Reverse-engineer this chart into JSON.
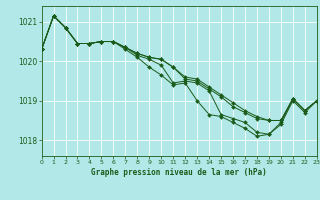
{
  "title": "Graphe pression niveau de la mer (hPa)",
  "background_color": "#b3e8e8",
  "grid_color": "#ffffff",
  "line_color": "#1a5c1a",
  "marker_color": "#1a5c1a",
  "xlim": [
    0,
    23
  ],
  "ylim": [
    1017.6,
    1021.4
  ],
  "yticks": [
    1018,
    1019,
    1020,
    1021
  ],
  "xticks": [
    0,
    1,
    2,
    3,
    4,
    5,
    6,
    7,
    8,
    9,
    10,
    11,
    12,
    13,
    14,
    15,
    16,
    17,
    18,
    19,
    20,
    21,
    22,
    23
  ],
  "series": [
    [
      1020.3,
      1021.15,
      1020.85,
      1020.45,
      1020.45,
      1020.5,
      1020.5,
      1020.35,
      1020.15,
      1020.05,
      1019.9,
      1019.45,
      1019.5,
      1019.45,
      1019.25,
      1018.65,
      1018.55,
      1018.45,
      1018.2,
      1018.15,
      1018.45,
      1019.05,
      1018.75,
      1019.0
    ],
    [
      1020.3,
      1021.15,
      1020.85,
      1020.45,
      1020.45,
      1020.5,
      1020.5,
      1020.3,
      1020.1,
      1019.85,
      1019.65,
      1019.4,
      1019.45,
      1019.0,
      1018.65,
      1018.6,
      1018.45,
      1018.3,
      1018.1,
      1018.15,
      1018.4,
      1019.0,
      1018.7,
      1019.0
    ],
    [
      1020.3,
      1021.15,
      1020.85,
      1020.45,
      1020.45,
      1020.5,
      1020.5,
      1020.35,
      1020.2,
      1020.1,
      1020.05,
      1019.85,
      1019.55,
      1019.5,
      1019.3,
      1019.1,
      1018.85,
      1018.7,
      1018.55,
      1018.5,
      1018.5,
      1019.05,
      1018.75,
      1019.0
    ],
    [
      1020.3,
      1021.15,
      1020.85,
      1020.45,
      1020.45,
      1020.5,
      1020.5,
      1020.35,
      1020.2,
      1020.1,
      1020.05,
      1019.85,
      1019.6,
      1019.55,
      1019.35,
      1019.15,
      1018.95,
      1018.75,
      1018.6,
      1018.5,
      1018.5,
      1019.05,
      1018.75,
      1019.0
    ]
  ]
}
